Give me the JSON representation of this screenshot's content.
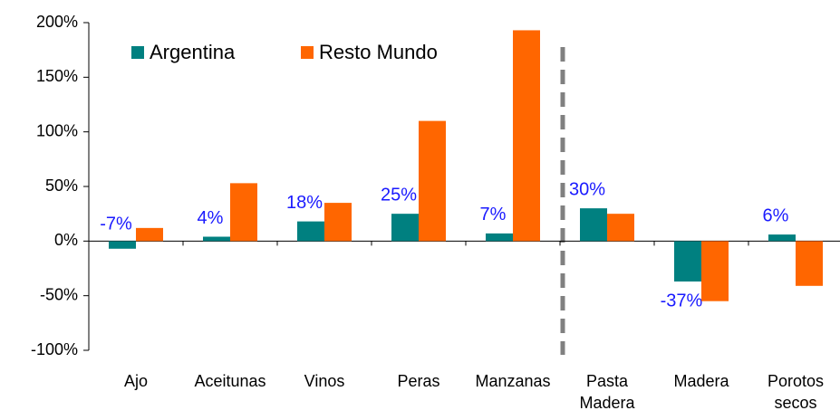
{
  "chart_data": {
    "type": "bar",
    "categories": [
      "Ajo",
      "Aceitunas",
      "Vinos",
      "Peras",
      "Manzanas",
      "Pasta Madera",
      "Madera",
      "Porotos secos"
    ],
    "series": [
      {
        "name": "Argentina",
        "color": "#008080",
        "values": [
          -7,
          4,
          18,
          25,
          7,
          30,
          -37,
          6
        ],
        "value_labels": [
          "-7%",
          "4%",
          "18%",
          "25%",
          "7%",
          "30%",
          "-37%",
          "6%"
        ]
      },
      {
        "name": "Resto Mundo",
        "color": "#ff6600",
        "values": [
          12,
          53,
          35,
          110,
          193,
          25,
          -55,
          -41
        ]
      }
    ],
    "ylim": [
      -100,
      200
    ],
    "yticks": [
      {
        "value": -100,
        "label": "-100%"
      },
      {
        "value": -50,
        "label": "-50%"
      },
      {
        "value": 0,
        "label": "0%"
      },
      {
        "value": 50,
        "label": "50%"
      },
      {
        "value": 100,
        "label": "100%"
      },
      {
        "value": 150,
        "label": "150%"
      },
      {
        "value": 200,
        "label": "200%"
      }
    ],
    "value_label_color": "#1a1aff",
    "legend": "top-left"
  }
}
